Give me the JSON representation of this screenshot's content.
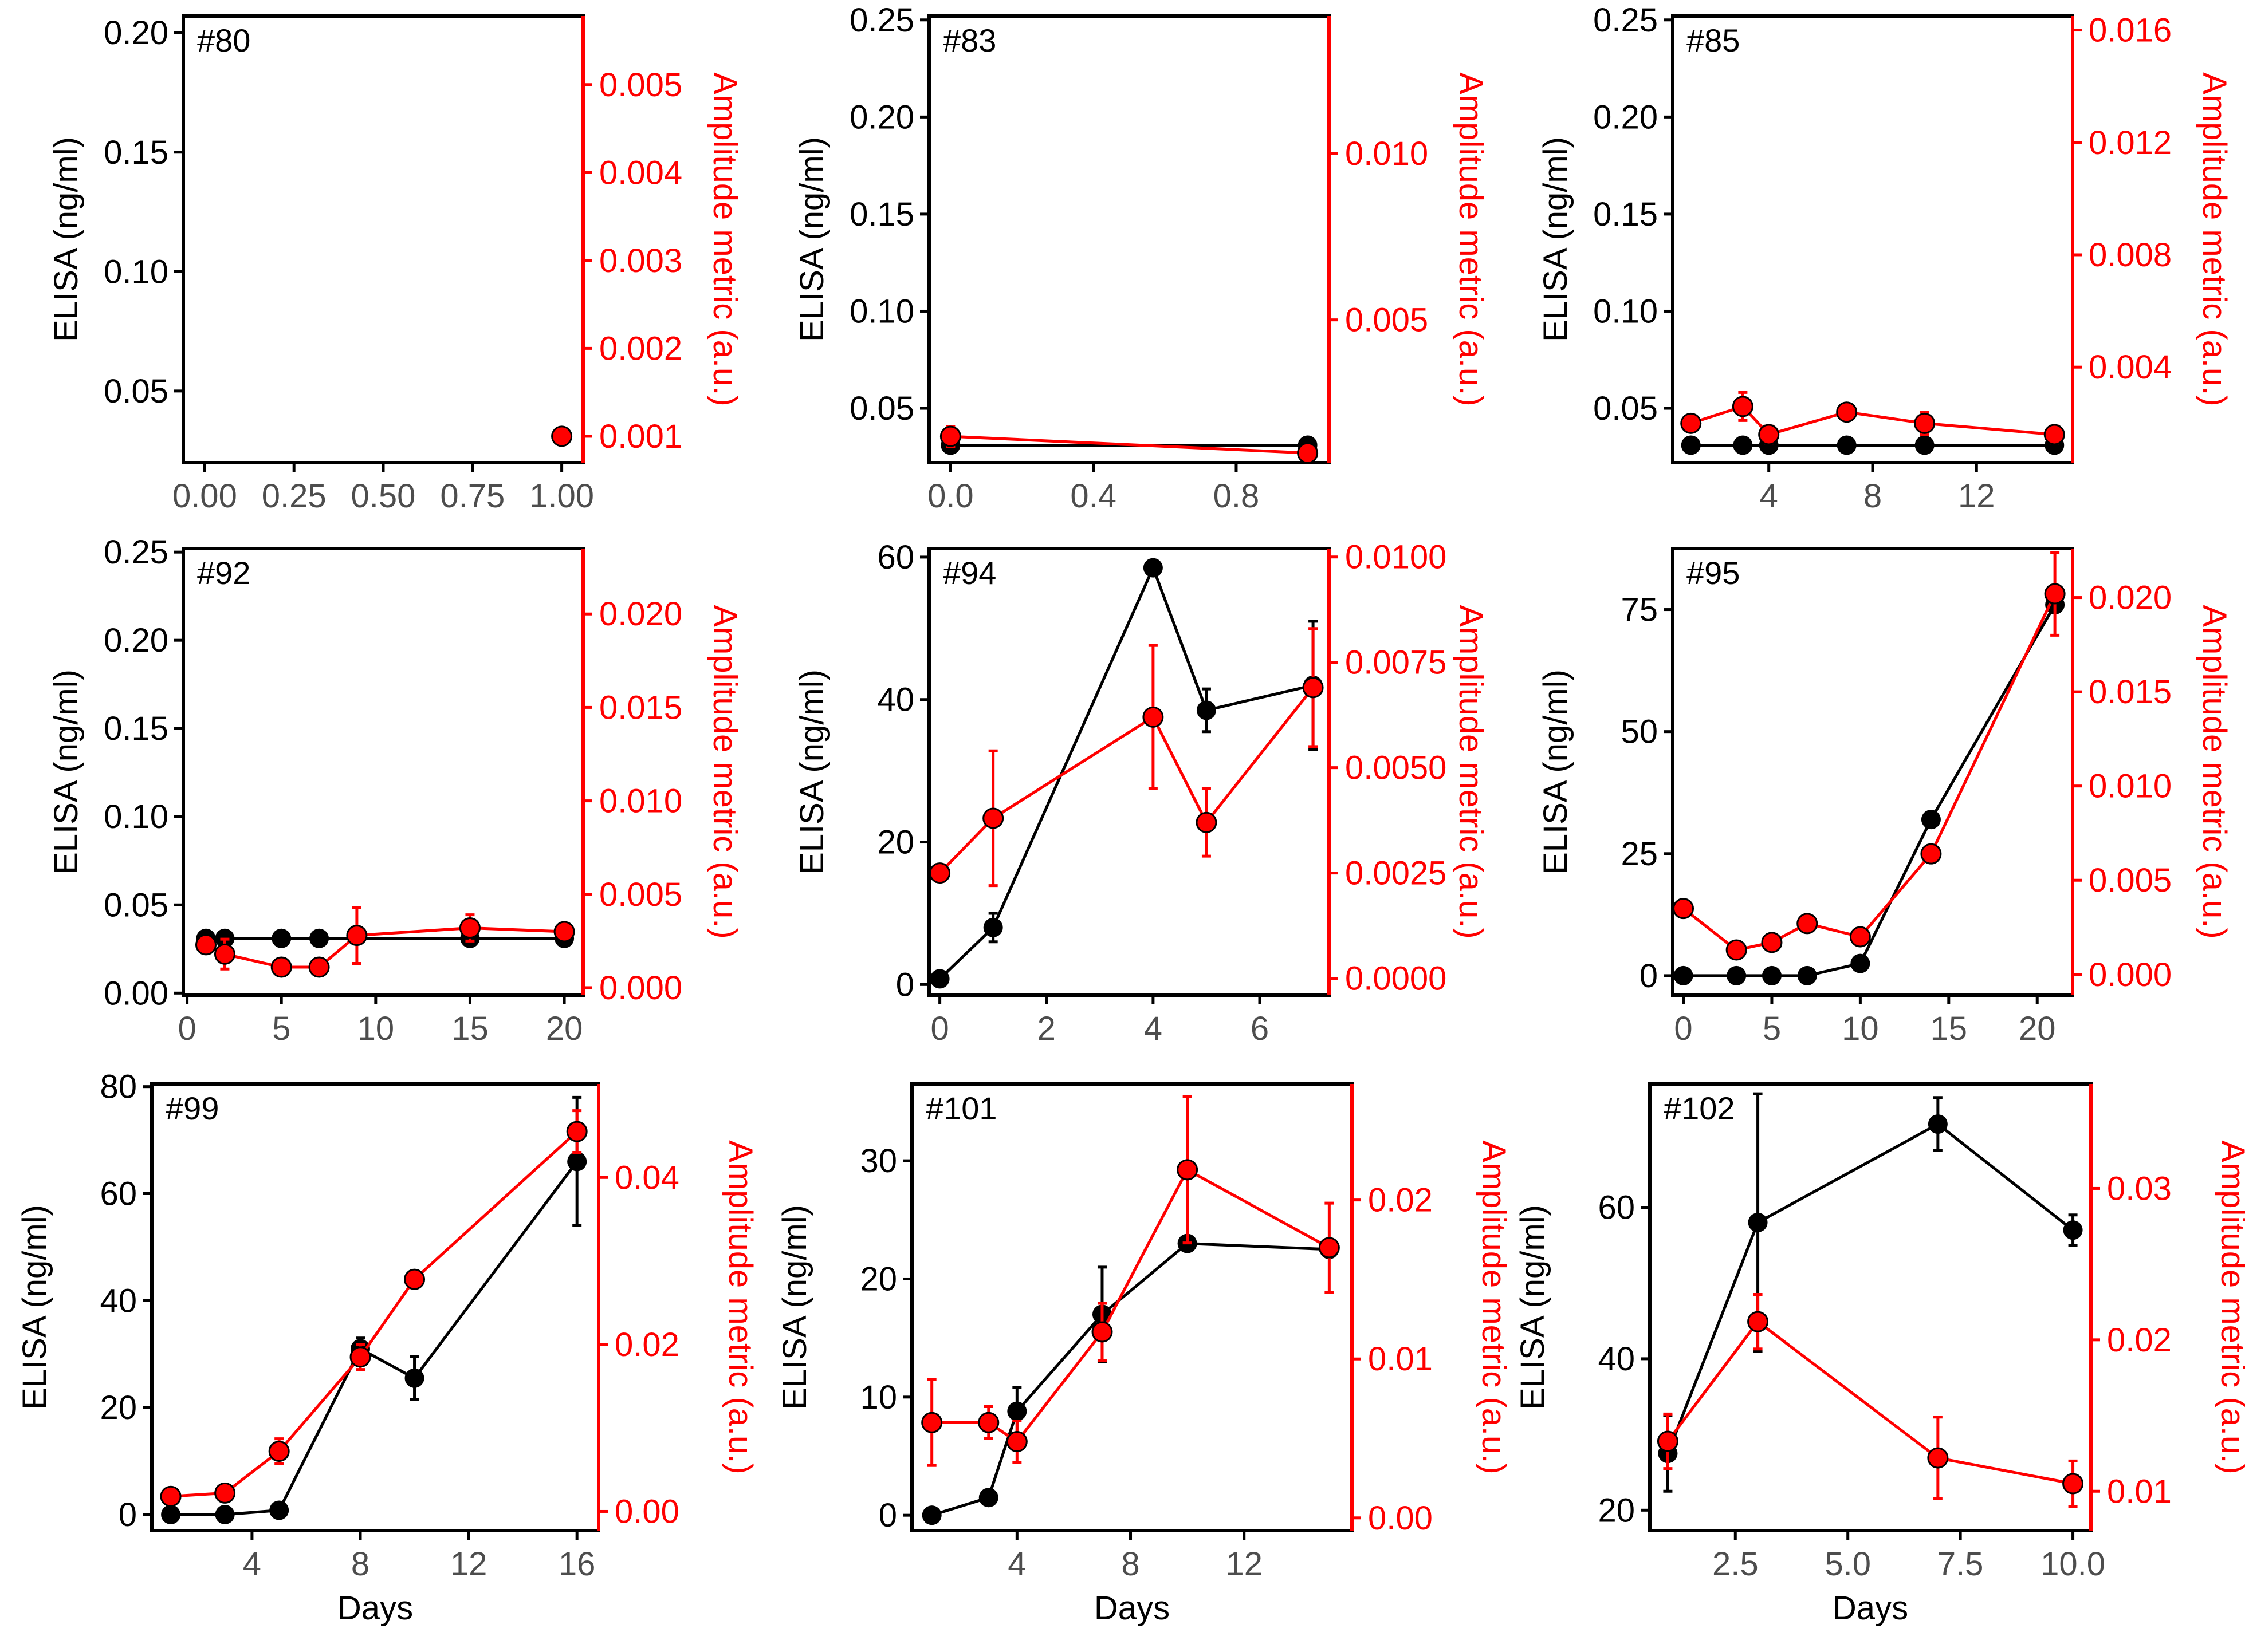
{
  "figure": {
    "x_label": "Days",
    "left_axis_label": "ELISA (ng/ml)",
    "right_axis_label": "Amplitude metric (a.u.)",
    "colors": {
      "elisa": "#000000",
      "amplitude": "#ff0000",
      "axis_right": "#ff0000",
      "tick_text": "#4d4d4d"
    }
  },
  "chart_data": [
    {
      "type": "line",
      "panel_label": "#80",
      "xlabel": "",
      "show_xlabel": false,
      "x_range": [
        -0.06,
        1.06
      ],
      "x_ticks": [
        0,
        0.25,
        0.5,
        0.75,
        1
      ],
      "x_tick_labels": [
        "0.00",
        "0.25",
        "0.50",
        "0.75",
        "1.00"
      ],
      "left_range": [
        0.02,
        0.207
      ],
      "left_ticks": [
        0.05,
        0.1,
        0.15,
        0.2
      ],
      "left_tick_labels": [
        "0.05",
        "0.10",
        "0.15",
        "0.20"
      ],
      "right_range": [
        0.0007,
        0.00578
      ],
      "right_ticks": [
        0.001,
        0.002,
        0.003,
        0.004,
        0.005
      ],
      "right_tick_labels": [
        "0.001",
        "0.002",
        "0.003",
        "0.004",
        "0.005"
      ],
      "series": [
        {
          "name": "ELISA",
          "axis": "left",
          "points": [
            [
              1,
              0.031,
              0
            ]
          ]
        },
        {
          "name": "Amplitude metric",
          "axis": "right",
          "points": [
            [
              1,
              0.001,
              0
            ]
          ]
        }
      ]
    },
    {
      "type": "line",
      "panel_label": "#83",
      "xlabel": "",
      "show_xlabel": false,
      "x_range": [
        -0.06,
        1.06
      ],
      "x_ticks": [
        0,
        0.4,
        0.8
      ],
      "x_tick_labels": [
        "0.0",
        "0.4",
        "0.8"
      ],
      "left_range": [
        0.022,
        0.252
      ],
      "left_ticks": [
        0.05,
        0.1,
        0.15,
        0.2,
        0.25
      ],
      "left_tick_labels": [
        "0.05",
        "0.10",
        "0.15",
        "0.20",
        "0.25"
      ],
      "right_range": [
        0.00071,
        0.01413
      ],
      "right_ticks": [
        0.005,
        0.01
      ],
      "right_tick_labels": [
        "0.005",
        "0.010"
      ],
      "series": [
        {
          "name": "ELISA",
          "axis": "left",
          "points": [
            [
              0,
              0.031,
              0
            ],
            [
              1,
              0.031,
              0
            ]
          ],
          "hline": true
        },
        {
          "name": "Amplitude metric",
          "axis": "right",
          "points": [
            [
              0,
              0.0015,
              0.0003
            ],
            [
              1,
              0.001,
              0
            ]
          ]
        }
      ]
    },
    {
      "type": "line",
      "panel_label": "#85",
      "xlabel": "",
      "show_xlabel": false,
      "x_range": [
        0.3,
        15.7
      ],
      "x_ticks": [
        4,
        8,
        12
      ],
      "x_tick_labels": [
        "4",
        "8",
        "12"
      ],
      "left_range": [
        0.022,
        0.252
      ],
      "left_ticks": [
        0.05,
        0.1,
        0.15,
        0.2,
        0.25
      ],
      "left_tick_labels": [
        "0.05",
        "0.10",
        "0.15",
        "0.20",
        "0.25"
      ],
      "right_range": [
        0.0006,
        0.0165
      ],
      "right_ticks": [
        0.004,
        0.008,
        0.012,
        0.016
      ],
      "right_tick_labels": [
        "0.004",
        "0.008",
        "0.012",
        "0.016"
      ],
      "series": [
        {
          "name": "ELISA",
          "axis": "left",
          "points": [
            [
              1,
              0.031,
              0
            ],
            [
              3,
              0.031,
              0.003
            ],
            [
              4,
              0.031,
              0
            ],
            [
              7,
              0.031,
              0
            ],
            [
              10,
              0.031,
              0
            ],
            [
              15,
              0.031,
              0
            ]
          ],
          "hline": true
        },
        {
          "name": "Amplitude metric",
          "axis": "right",
          "points": [
            [
              1,
              0.002,
              0
            ],
            [
              3,
              0.0026,
              0.0005
            ],
            [
              4,
              0.0016,
              0.0003
            ],
            [
              7,
              0.0024,
              0.0002
            ],
            [
              10,
              0.002,
              0.0004
            ],
            [
              15,
              0.0016,
              0.0003
            ]
          ]
        }
      ]
    },
    {
      "type": "line",
      "panel_label": "#92",
      "xlabel": "",
      "show_xlabel": false,
      "x_range": [
        -0.2,
        21
      ],
      "x_ticks": [
        0,
        5,
        10,
        15,
        20
      ],
      "x_tick_labels": [
        "0",
        "5",
        "10",
        "15",
        "20"
      ],
      "left_range": [
        -0.0012,
        0.252
      ],
      "left_ticks": [
        0,
        0.05,
        0.1,
        0.15,
        0.2,
        0.25
      ],
      "left_tick_labels": [
        "0.00",
        "0.05",
        "0.10",
        "0.15",
        "0.20",
        "0.25"
      ],
      "right_range": [
        -0.0004,
        0.0235
      ],
      "right_ticks": [
        0,
        0.005,
        0.01,
        0.015,
        0.02
      ],
      "right_tick_labels": [
        "0.000",
        "0.005",
        "0.010",
        "0.015",
        "0.020"
      ],
      "series": [
        {
          "name": "ELISA",
          "axis": "left",
          "points": [
            [
              1,
              0.031,
              0
            ],
            [
              2,
              0.031,
              0
            ],
            [
              5,
              0.031,
              0
            ],
            [
              7,
              0.031,
              0
            ],
            [
              15,
              0.031,
              0.002
            ],
            [
              20,
              0.031,
              0
            ]
          ],
          "hline": true
        },
        {
          "name": "Amplitude metric",
          "axis": "right",
          "points": [
            [
              1,
              0.0023,
              0.0003
            ],
            [
              2,
              0.0018,
              0.0008
            ],
            [
              5,
              0.0011,
              0.0002
            ],
            [
              7,
              0.0011,
              0.0003
            ],
            [
              9,
              0.0028,
              0.0015
            ],
            [
              15,
              0.0032,
              0.0007
            ],
            [
              20,
              0.003,
              0.0002
            ]
          ]
        }
      ]
    },
    {
      "type": "line",
      "panel_label": "#94",
      "xlabel": "",
      "show_xlabel": false,
      "x_range": [
        -0.2,
        7.3
      ],
      "x_ticks": [
        0,
        2,
        4,
        6
      ],
      "x_tick_labels": [
        "0",
        "2",
        "4",
        "6"
      ],
      "left_range": [
        -1.5,
        61.2
      ],
      "left_ticks": [
        0,
        20,
        40,
        60
      ],
      "left_tick_labels": [
        "0",
        "20",
        "40",
        "60"
      ],
      "right_range": [
        -0.0004,
        0.0102
      ],
      "right_ticks": [
        0,
        0.0025,
        0.005,
        0.0075,
        0.01
      ],
      "right_tick_labels": [
        "0.0000",
        "0.0025",
        "0.0050",
        "0.0075",
        "0.0100"
      ],
      "series": [
        {
          "name": "ELISA",
          "axis": "left",
          "points": [
            [
              0,
              0.8,
              0
            ],
            [
              1,
              8,
              2
            ],
            [
              4,
              58.5,
              0.5
            ],
            [
              5,
              38.5,
              3
            ],
            [
              7,
              42,
              9
            ]
          ]
        },
        {
          "name": "Amplitude metric",
          "axis": "right",
          "points": [
            [
              0,
              0.0025,
              0.0002
            ],
            [
              1,
              0.0038,
              0.0016
            ],
            [
              4,
              0.0062,
              0.0017
            ],
            [
              5,
              0.0037,
              0.0008
            ],
            [
              7,
              0.0069,
              0.0014
            ]
          ]
        }
      ]
    },
    {
      "type": "line",
      "panel_label": "#95",
      "xlabel": "",
      "show_xlabel": false,
      "x_range": [
        -0.6,
        22
      ],
      "x_ticks": [
        0,
        5,
        10,
        15,
        20
      ],
      "x_tick_labels": [
        "0",
        "5",
        "10",
        "15",
        "20"
      ],
      "left_range": [
        -4,
        87.5
      ],
      "left_ticks": [
        0,
        25,
        50,
        75
      ],
      "left_tick_labels": [
        "0",
        "25",
        "50",
        "75"
      ],
      "right_range": [
        -0.0011,
        0.0226
      ],
      "right_ticks": [
        0,
        0.005,
        0.01,
        0.015,
        0.02
      ],
      "right_tick_labels": [
        "0.000",
        "0.005",
        "0.010",
        "0.015",
        "0.020"
      ],
      "series": [
        {
          "name": "ELISA",
          "axis": "left",
          "points": [
            [
              0,
              0,
              0
            ],
            [
              3,
              0,
              0
            ],
            [
              5,
              0,
              0
            ],
            [
              7,
              0,
              0
            ],
            [
              10,
              2.5,
              1
            ],
            [
              14,
              32,
              1
            ],
            [
              21,
              76,
              0
            ]
          ]
        },
        {
          "name": "Amplitude metric",
          "axis": "right",
          "points": [
            [
              0,
              0.0035,
              0.0004
            ],
            [
              3,
              0.0013,
              0.0002
            ],
            [
              5,
              0.0017,
              0.0003
            ],
            [
              7,
              0.0027,
              0.0003
            ],
            [
              10,
              0.002,
              0.0003
            ],
            [
              14,
              0.0064,
              0.0002
            ],
            [
              21,
              0.0202,
              0.0022
            ]
          ]
        }
      ]
    },
    {
      "type": "line",
      "panel_label": "#99",
      "xlabel": "Days",
      "show_xlabel": true,
      "x_range": [
        0.3,
        16.8
      ],
      "x_ticks": [
        4,
        8,
        12,
        16
      ],
      "x_tick_labels": [
        "4",
        "8",
        "12",
        "16"
      ],
      "left_range": [
        -3,
        80.5
      ],
      "left_ticks": [
        0,
        20,
        40,
        60,
        80
      ],
      "left_tick_labels": [
        "0",
        "20",
        "40",
        "60",
        "80"
      ],
      "right_range": [
        -0.0023,
        0.0512
      ],
      "right_ticks": [
        0,
        0.02,
        0.04
      ],
      "right_tick_labels": [
        "0.00",
        "0.02",
        "0.04"
      ],
      "series": [
        {
          "name": "ELISA",
          "axis": "left",
          "points": [
            [
              1,
              0,
              0
            ],
            [
              3,
              0,
              0
            ],
            [
              5,
              0.8,
              0
            ],
            [
              8,
              31,
              2
            ],
            [
              10,
              25.5,
              4
            ],
            [
              16,
              66,
              12
            ]
          ]
        },
        {
          "name": "Amplitude metric",
          "axis": "right",
          "points": [
            [
              1,
              0.0018,
              0.0002
            ],
            [
              3,
              0.0022,
              0.0002
            ],
            [
              5,
              0.0072,
              0.0015
            ],
            [
              8,
              0.0185,
              0.0015
            ],
            [
              10,
              0.0278,
              0.0007
            ],
            [
              16,
              0.0455,
              0.0025
            ]
          ]
        }
      ]
    },
    {
      "type": "line",
      "panel_label": "#101",
      "xlabel": "Days",
      "show_xlabel": true,
      "x_range": [
        0.3,
        15.8
      ],
      "x_ticks": [
        4,
        8,
        12
      ],
      "x_tick_labels": [
        "4",
        "8",
        "12"
      ],
      "left_range": [
        -1.3,
        36.5
      ],
      "left_ticks": [
        0,
        10,
        20,
        30
      ],
      "left_tick_labels": [
        "0",
        "10",
        "20",
        "30"
      ],
      "right_range": [
        -0.0008,
        0.0273
      ],
      "right_ticks": [
        0,
        0.01,
        0.02
      ],
      "right_tick_labels": [
        "0.00",
        "0.01",
        "0.02"
      ],
      "series": [
        {
          "name": "ELISA",
          "axis": "left",
          "points": [
            [
              1,
              0,
              0
            ],
            [
              3,
              1.5,
              0.3
            ],
            [
              4,
              8.8,
              2
            ],
            [
              7,
              17,
              4
            ],
            [
              10,
              23,
              0
            ],
            [
              15,
              22.5,
              0
            ]
          ]
        },
        {
          "name": "Amplitude metric",
          "axis": "right",
          "points": [
            [
              1,
              0.006,
              0.0027
            ],
            [
              3,
              0.006,
              0.001
            ],
            [
              4,
              0.0048,
              0.0013
            ],
            [
              7,
              0.0117,
              0.0018
            ],
            [
              10,
              0.0219,
              0.0046
            ],
            [
              15,
              0.017,
              0.0028
            ]
          ]
        }
      ]
    },
    {
      "type": "line",
      "panel_label": "#102",
      "xlabel": "Days",
      "show_xlabel": true,
      "x_range": [
        0.6,
        10.4
      ],
      "x_ticks": [
        2.5,
        5,
        7.5,
        10
      ],
      "x_tick_labels": [
        "2.5",
        "5.0",
        "7.5",
        "10.0"
      ],
      "left_range": [
        17.3,
        76.3
      ],
      "left_ticks": [
        20,
        40,
        60
      ],
      "left_tick_labels": [
        "20",
        "40",
        "60"
      ],
      "right_range": [
        0.0074,
        0.0369
      ],
      "right_ticks": [
        0.01,
        0.02,
        0.03
      ],
      "right_tick_labels": [
        "0.01",
        "0.02",
        "0.03"
      ],
      "series": [
        {
          "name": "ELISA",
          "axis": "left",
          "points": [
            [
              1,
              27.5,
              5
            ],
            [
              3,
              58,
              17
            ],
            [
              7,
              71,
              3.5
            ],
            [
              10,
              57,
              2
            ]
          ]
        },
        {
          "name": "Amplitude metric",
          "axis": "right",
          "points": [
            [
              1,
              0.0133,
              0.0018
            ],
            [
              3,
              0.0212,
              0.0018
            ],
            [
              7,
              0.0122,
              0.0027
            ],
            [
              10,
              0.0105,
              0.0015
            ]
          ]
        }
      ]
    }
  ]
}
